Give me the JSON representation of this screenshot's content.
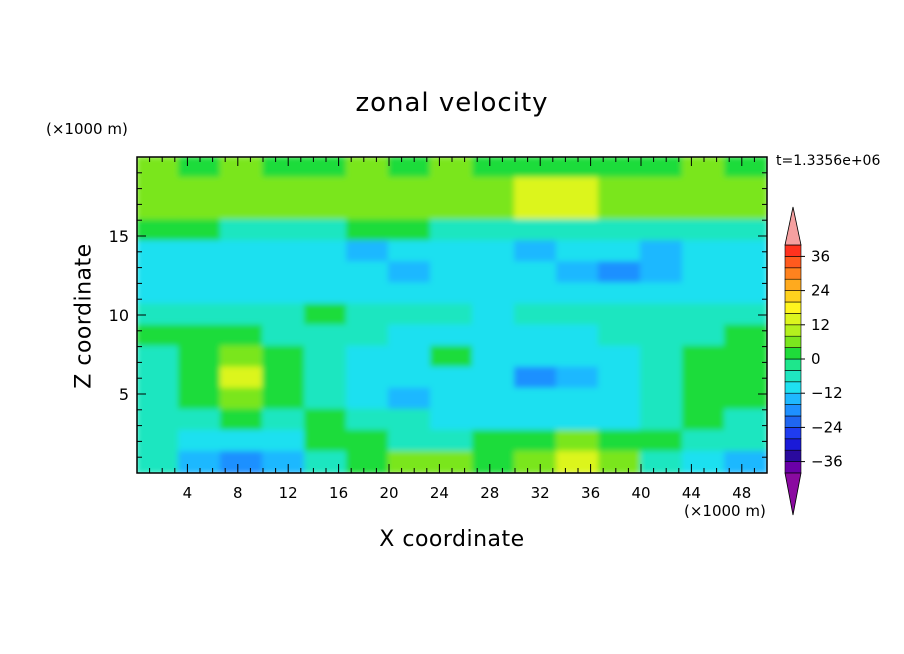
{
  "chart_data": {
    "type": "heatmap",
    "title": "zonal velocity",
    "xlabel": "X coordinate",
    "ylabel": "Z coordinate",
    "x_unit": "(×1000 m)",
    "y_unit": "(×1000 m)",
    "time_label": "t=1.3356e+06",
    "xlim": [
      0,
      50
    ],
    "ylim": [
      0,
      20
    ],
    "x_ticks": [
      4,
      8,
      12,
      16,
      20,
      24,
      28,
      32,
      36,
      40,
      44,
      48
    ],
    "y_ticks": [
      5,
      10,
      15
    ],
    "colorbar": {
      "ticks": [
        36,
        24,
        12,
        0,
        -12,
        -24,
        -36
      ],
      "levels": [
        -40,
        -36,
        -32,
        -28,
        -24,
        -20,
        -16,
        -12,
        -8,
        -4,
        0,
        4,
        8,
        12,
        16,
        20,
        24,
        28,
        32,
        36,
        40
      ],
      "colors": [
        "#6a00a8",
        "#2a0a9e",
        "#1a1ad8",
        "#1f3cf0",
        "#1f66f0",
        "#1e90ff",
        "#1fb8ff",
        "#1fe0f0",
        "#1fe6c0",
        "#1ee68c",
        "#1fdc3a",
        "#7ae61e",
        "#b4f01e",
        "#dcf51e",
        "#fff51e",
        "#ffd21e",
        "#ffaa1e",
        "#ff821e",
        "#ff5a1e",
        "#ff321e",
        "#f0a0a0"
      ],
      "under_color": "#8a0aa0",
      "over_color": "#f5a0a0"
    },
    "field_rows_top_to_bottom": [
      [
        6,
        5,
        6,
        5,
        5,
        6,
        5,
        6,
        5,
        5,
        5,
        5,
        5,
        6,
        5
      ],
      [
        6,
        6,
        6,
        6,
        6,
        6,
        6,
        6,
        6,
        7,
        7,
        6,
        6,
        6,
        6
      ],
      [
        6,
        6,
        6,
        6,
        6,
        6,
        6,
        6,
        6,
        7,
        7,
        6,
        6,
        6,
        6
      ],
      [
        5,
        5,
        4,
        4,
        4,
        5,
        5,
        4,
        4,
        4,
        4,
        4,
        4,
        4,
        4
      ],
      [
        3,
        3,
        3,
        3,
        3,
        2,
        3,
        3,
        3,
        2,
        3,
        3,
        2,
        3,
        3
      ],
      [
        3,
        3,
        3,
        3,
        3,
        3,
        2,
        3,
        3,
        3,
        2,
        1,
        2,
        3,
        3
      ],
      [
        3,
        3,
        3,
        3,
        3,
        3,
        3,
        3,
        3,
        3,
        3,
        3,
        3,
        3,
        3
      ],
      [
        4,
        4,
        4,
        4,
        5,
        4,
        4,
        4,
        3,
        4,
        4,
        4,
        4,
        4,
        4
      ],
      [
        5,
        5,
        5,
        4,
        4,
        4,
        3,
        3,
        3,
        3,
        3,
        4,
        4,
        4,
        5
      ],
      [
        4,
        5,
        6,
        5,
        4,
        3,
        3,
        5,
        3,
        3,
        3,
        3,
        4,
        5,
        5
      ],
      [
        4,
        5,
        7,
        5,
        4,
        3,
        3,
        3,
        3,
        1,
        2,
        3,
        4,
        5,
        5
      ],
      [
        4,
        5,
        6,
        5,
        4,
        3,
        2,
        3,
        3,
        3,
        3,
        3,
        4,
        5,
        5
      ],
      [
        4,
        4,
        5,
        4,
        5,
        4,
        4,
        3,
        3,
        3,
        3,
        3,
        4,
        5,
        4
      ],
      [
        4,
        3,
        3,
        3,
        5,
        5,
        4,
        4,
        5,
        5,
        6,
        5,
        5,
        4,
        4
      ],
      [
        4,
        2,
        1,
        2,
        4,
        5,
        6,
        6,
        5,
        6,
        7,
        6,
        4,
        3,
        2
      ]
    ]
  }
}
